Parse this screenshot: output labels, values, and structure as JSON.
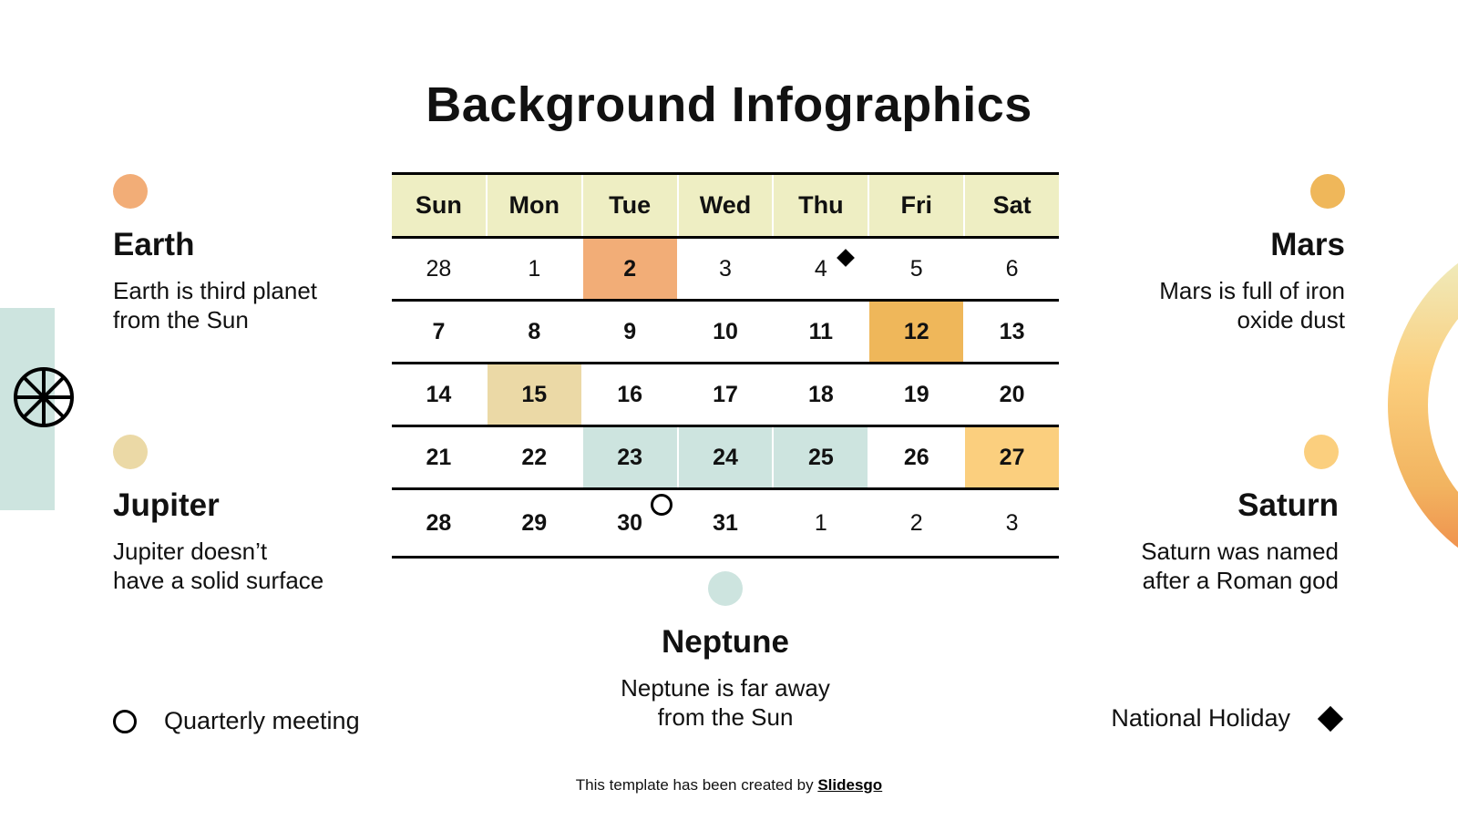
{
  "title": "Background Infographics",
  "colors": {
    "header_bg": "#eeeec3",
    "earth": "#f2ad77",
    "mars": "#efb75a",
    "jupiter": "#ebd9a6",
    "saturn": "#fbcf7e",
    "neptune": "#cde4df",
    "grid_line": "#000000"
  },
  "calendar": {
    "weekdays": [
      "Sun",
      "Mon",
      "Tue",
      "Wed",
      "Thu",
      "Fri",
      "Sat"
    ],
    "weeks": [
      [
        {
          "day": "28",
          "bold": false,
          "bg": ""
        },
        {
          "day": "1",
          "bold": false,
          "bg": ""
        },
        {
          "day": "2",
          "bold": true,
          "bg": "#f2ad77"
        },
        {
          "day": "3",
          "bold": false,
          "bg": ""
        },
        {
          "day": "4",
          "bold": false,
          "bg": "",
          "marker": "diamond"
        },
        {
          "day": "5",
          "bold": false,
          "bg": ""
        },
        {
          "day": "6",
          "bold": false,
          "bg": ""
        }
      ],
      [
        {
          "day": "7",
          "bold": true,
          "bg": ""
        },
        {
          "day": "8",
          "bold": true,
          "bg": ""
        },
        {
          "day": "9",
          "bold": true,
          "bg": ""
        },
        {
          "day": "10",
          "bold": true,
          "bg": ""
        },
        {
          "day": "11",
          "bold": true,
          "bg": ""
        },
        {
          "day": "12",
          "bold": true,
          "bg": "#efb75a"
        },
        {
          "day": "13",
          "bold": true,
          "bg": ""
        }
      ],
      [
        {
          "day": "14",
          "bold": true,
          "bg": ""
        },
        {
          "day": "15",
          "bold": true,
          "bg": "#ebd9a6"
        },
        {
          "day": "16",
          "bold": true,
          "bg": ""
        },
        {
          "day": "17",
          "bold": true,
          "bg": ""
        },
        {
          "day": "18",
          "bold": true,
          "bg": ""
        },
        {
          "day": "19",
          "bold": true,
          "bg": ""
        },
        {
          "day": "20",
          "bold": true,
          "bg": ""
        }
      ],
      [
        {
          "day": "21",
          "bold": true,
          "bg": ""
        },
        {
          "day": "22",
          "bold": true,
          "bg": ""
        },
        {
          "day": "23",
          "bold": true,
          "bg": "#cde4df"
        },
        {
          "day": "24",
          "bold": true,
          "bg": "#cde4df"
        },
        {
          "day": "25",
          "bold": true,
          "bg": "#cde4df"
        },
        {
          "day": "26",
          "bold": true,
          "bg": ""
        },
        {
          "day": "27",
          "bold": true,
          "bg": "#fbcf7e"
        }
      ],
      [
        {
          "day": "28",
          "bold": true,
          "bg": ""
        },
        {
          "day": "29",
          "bold": true,
          "bg": ""
        },
        {
          "day": "30",
          "bold": true,
          "bg": "",
          "marker": "circle"
        },
        {
          "day": "31",
          "bold": true,
          "bg": ""
        },
        {
          "day": "1",
          "bold": false,
          "bg": ""
        },
        {
          "day": "2",
          "bold": false,
          "bg": ""
        },
        {
          "day": "3",
          "bold": false,
          "bg": ""
        }
      ]
    ]
  },
  "planets": {
    "earth": {
      "name": "Earth",
      "desc_line1": "Earth is third planet",
      "desc_line2": "from the Sun"
    },
    "mars": {
      "name": "Mars",
      "desc_line1": "Mars is full of iron",
      "desc_line2": "oxide dust"
    },
    "jupiter": {
      "name": "Jupiter",
      "desc_line1": "Jupiter doesn’t",
      "desc_line2": "have a solid surface"
    },
    "saturn": {
      "name": "Saturn",
      "desc_line1": "Saturn was named",
      "desc_line2": "after a Roman god"
    },
    "neptune": {
      "name": "Neptune",
      "desc_line1": "Neptune is far away",
      "desc_line2": "from the Sun"
    }
  },
  "legend": {
    "circle_label": "Quarterly meeting",
    "diamond_label": "National Holiday"
  },
  "footer": {
    "prefix": "This template has been created by ",
    "link": "Slidesgo"
  }
}
